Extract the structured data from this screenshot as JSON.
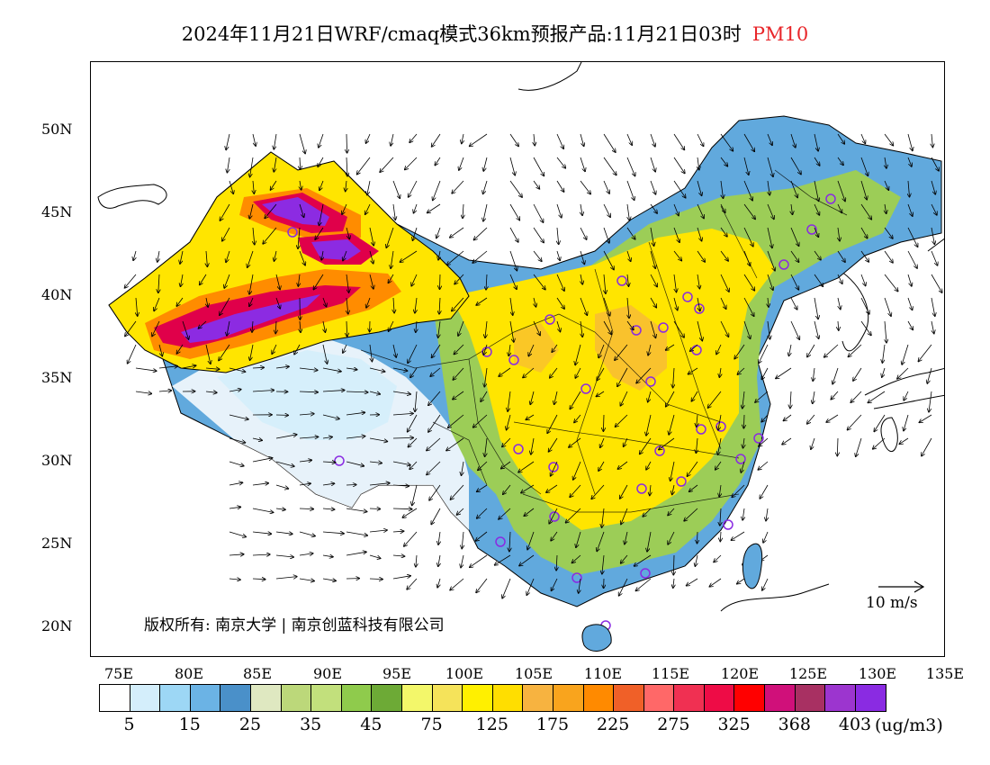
{
  "title": {
    "main": "2024年11月21日WRF/cmaq模式36km预报产品:11月21日03时",
    "pollutant": "PM10",
    "pollutant_color": "#e8262a"
  },
  "axes": {
    "lat_labels": [
      "50N",
      "45N",
      "40N",
      "35N",
      "30N",
      "25N",
      "20N"
    ],
    "lon_labels": [
      "75E",
      "80E",
      "85E",
      "90E",
      "95E",
      "100E",
      "105E",
      "110E",
      "115E",
      "120E",
      "125E",
      "130E",
      "135E"
    ]
  },
  "map": {
    "copyright": "版权所有: 南京大学 | 南京创蓝科技有限公司",
    "wind_scale_label": "10 m/s",
    "colors": {
      "high_bands": [
        "#8c2be2",
        "#e0004a",
        "#ff8c00",
        "#ffe500",
        "#f5ef57"
      ],
      "background_fill": "#ffe500",
      "green_band": "#9ccd57",
      "blue_band": "#61a9dd"
    }
  },
  "colorbar": {
    "colors": [
      "#ffffff",
      "#d4eefb",
      "#9dd7f5",
      "#6bb3e5",
      "#4a90c9",
      "#dfe8c1",
      "#bcd87a",
      "#c2e07c",
      "#8fcb4c",
      "#6daa36",
      "#f3f76a",
      "#f5e35a",
      "#fff000",
      "#ffde00",
      "#f7b340",
      "#f9a41d",
      "#ff8a00",
      "#f06028",
      "#ff6868",
      "#f03052",
      "#ee0c46",
      "#ff0000",
      "#d0107a",
      "#a83062",
      "#9c35cf",
      "#8a2be2"
    ],
    "labels": [
      "5",
      "15",
      "25",
      "35",
      "45",
      "75",
      "125",
      "175",
      "225",
      "275",
      "325",
      "368",
      "403"
    ],
    "unit": "(ug/m3)"
  }
}
